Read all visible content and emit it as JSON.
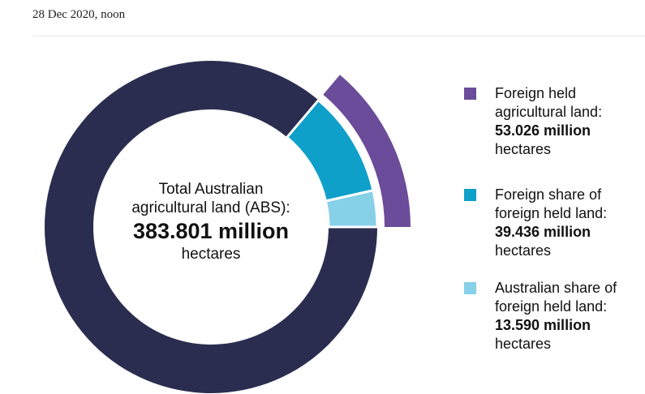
{
  "date": "28 Dec 2020, noon",
  "chart_data": {
    "type": "donut",
    "unit": "hectares",
    "total": {
      "label": "Total Australian agricultural land (ABS):",
      "value": 383.801,
      "value_label": "383.801 million",
      "color": "#2b2d50"
    },
    "series": [
      {
        "name": "Foreign held agricultural land:",
        "value": 53.026,
        "value_label": "53.026 million",
        "color": "#6b4c9a",
        "ring": "outer"
      },
      {
        "name": "Foreign share of foreign held land:",
        "value": 39.436,
        "value_label": "39.436 million",
        "color": "#0fa0c9",
        "ring": "inner"
      },
      {
        "name": "Australian share of foreign held land:",
        "value": 13.59,
        "value_label": "13.590 million",
        "color": "#86d0e8",
        "ring": "inner"
      }
    ]
  }
}
